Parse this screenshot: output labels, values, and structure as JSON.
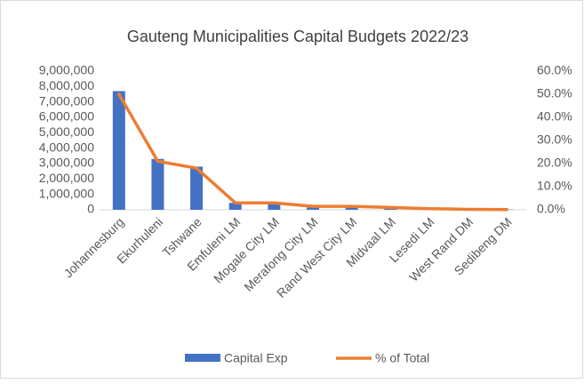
{
  "chart_data": {
    "type": "bar_line",
    "title": "Gauteng Municipalities Capital Budgets 2022/23",
    "categories": [
      "Johannesburg",
      "Ekurhuleni",
      "Tshwane",
      "Emfuleni LM",
      "Mogale City LM",
      "Merafong City LM",
      "Rand West City LM",
      "Midvaal LM",
      "Lesedi LM",
      "West Rand DM",
      "Sedibeng DM"
    ],
    "series": [
      {
        "name": "Capital Exp",
        "type": "bar",
        "color": "#4472c4",
        "axis": "y",
        "values": [
          7700000,
          3300000,
          2800000,
          450000,
          350000,
          150000,
          150000,
          100000,
          50000,
          30000,
          20000
        ]
      },
      {
        "name": "% of Total",
        "type": "line",
        "color": "#ed7d31",
        "axis": "y2",
        "values": [
          50,
          21,
          18,
          3,
          3,
          1.5,
          1.5,
          1,
          0.5,
          0.2,
          0.1
        ]
      }
    ],
    "ylim": [
      0,
      9000000
    ],
    "yticks": [
      0,
      {
        "value": 1000000,
        "label": "1,000,000"
      },
      {
        "value": 2000000,
        "label": "2,000,000"
      },
      {
        "value": 3000000,
        "label": "3,000,000"
      },
      {
        "value": 4000000,
        "label": "4,000,000"
      },
      {
        "value": 5000000,
        "label": "5,000,000"
      },
      {
        "value": 6000000,
        "label": "6,000,000"
      },
      {
        "value": 7000000,
        "label": "7,000,000"
      },
      {
        "value": 8000000,
        "label": "8,000,000"
      },
      {
        "value": 9000000,
        "label": "9,000,000"
      }
    ],
    "y2lim": [
      0,
      60
    ],
    "y2ticks": [
      {
        "value": 0,
        "label": "0.0%"
      },
      {
        "value": 10,
        "label": "10.0%"
      },
      {
        "value": 20,
        "label": "20.0%"
      },
      {
        "value": 30,
        "label": "30.0%"
      },
      {
        "value": 40,
        "label": "40.0%"
      },
      {
        "value": 50,
        "label": "50.0%"
      },
      {
        "value": 60,
        "label": "60.0%"
      }
    ],
    "legend": "bottom"
  }
}
